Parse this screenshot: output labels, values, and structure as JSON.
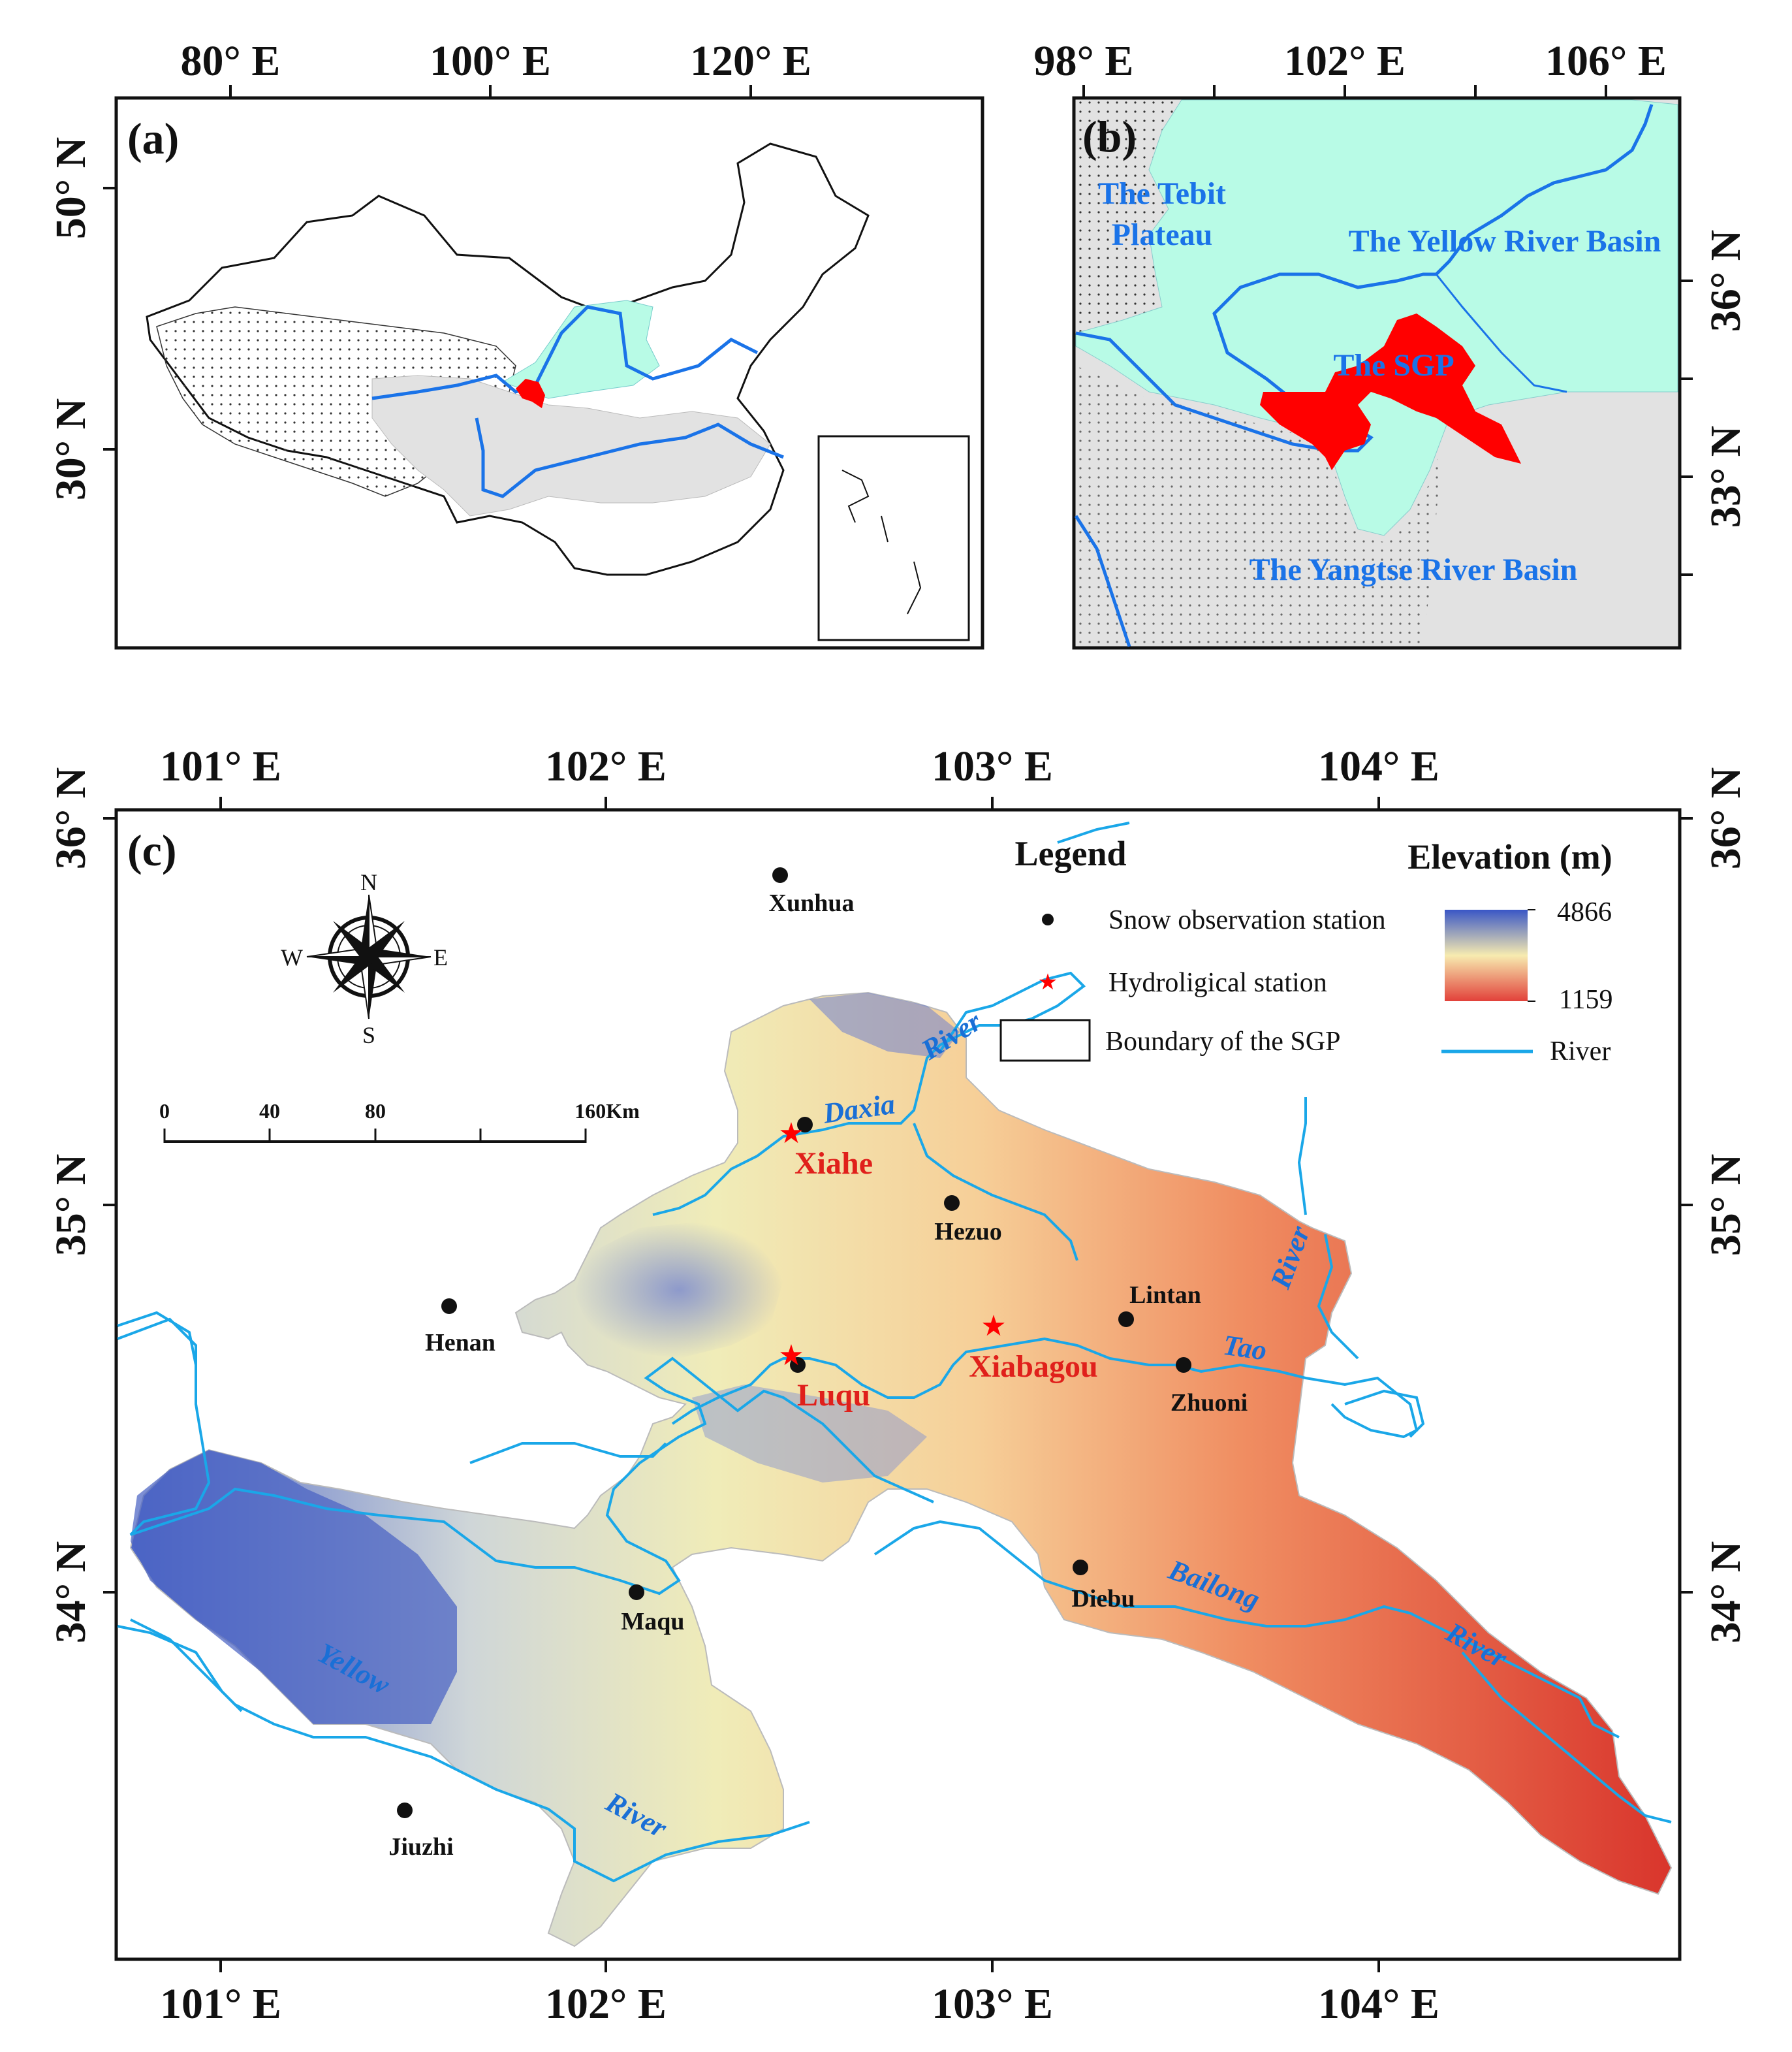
{
  "panel_a": {
    "label": "(a)",
    "lon_ticks": [
      "80° E",
      "100° E",
      "120° E"
    ],
    "lat_ticks": [
      "50° N",
      "30° N"
    ]
  },
  "panel_b": {
    "label": "(b)",
    "lon_ticks": [
      "98° E",
      "102° E",
      "106° E"
    ],
    "lat_ticks": [
      "36° N",
      "33° N"
    ],
    "labels": {
      "tibet_line1": "The Tebit",
      "tibet_line2": "Plateau",
      "yellow_basin": "The Yellow River Basin",
      "sgp": "The SGP",
      "yangtse_basin": "The Yangtse River Basin"
    }
  },
  "panel_c": {
    "label": "(c)",
    "lon_ticks": [
      "101° E",
      "102° E",
      "103° E",
      "104° E"
    ],
    "lat_ticks": [
      "36° N",
      "35° N",
      "34° N"
    ],
    "legend": {
      "title": "Legend",
      "snow_station": "Snow observation station",
      "hydro_station": "Hydroligical station",
      "boundary": "Boundary of the SGP",
      "elevation_title": "Elevation (m)",
      "elev_max": "4866",
      "elev_min": "1159",
      "river": "River"
    },
    "compass": {
      "n": "N",
      "s": "S",
      "e": "E",
      "w": "W"
    },
    "scalebar": {
      "ticks": [
        "0",
        "40",
        "80",
        "160Km"
      ]
    },
    "snow_stations": [
      "Xunhua",
      "Hezuo",
      "Henan",
      "Lintan",
      "Zhuoni",
      "Maqu",
      "Diebu",
      "Jiuzhi"
    ],
    "hydro_stations": [
      "Xiahe",
      "Luqu",
      "Xiabagou"
    ],
    "river_labels": {
      "daxia": "Daxia",
      "daxia_river": "River",
      "tao": "Tao",
      "tao_river": "River",
      "bailong": "Bailong",
      "bailong_river": "River",
      "yellow": "Yellow",
      "yellow_river": "River"
    }
  },
  "colors": {
    "river": "#1aa7e8",
    "sgp": "#ff0000",
    "yellow_basin": "#b8fbe6",
    "yangtse_basin": "#e2e2e2",
    "elev_high": "#3b5bc9",
    "elev_mid": "#f5efb5",
    "elev_low": "#e2473a"
  }
}
